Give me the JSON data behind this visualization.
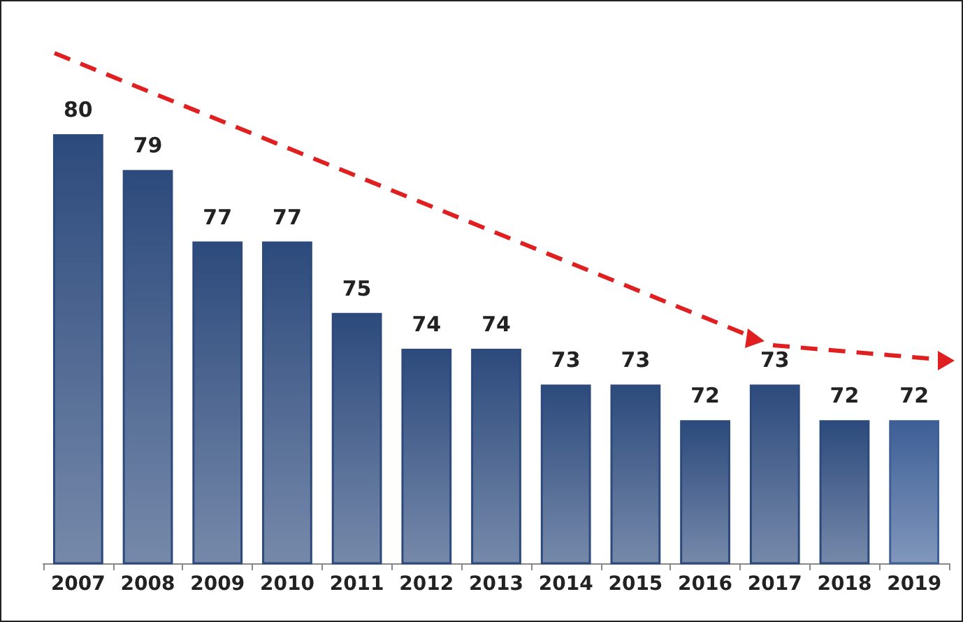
{
  "chart_data": {
    "type": "bar",
    "categories": [
      "2007",
      "2008",
      "2009",
      "2010",
      "2011",
      "2012",
      "2013",
      "2014",
      "2015",
      "2016",
      "2017",
      "2018",
      "2019"
    ],
    "values": [
      80,
      79,
      77,
      77,
      75,
      74,
      74,
      73,
      73,
      72,
      73,
      72,
      72
    ],
    "colors": [
      "#2c4a7c",
      "#2c4a7c",
      "#2c4a7c",
      "#2c4a7c",
      "#2c4a7c",
      "#2c4a7c",
      "#2c4a7c",
      "#2c4a7c",
      "#2c4a7c",
      "#2c4a7c",
      "#2c4a7c",
      "#2c4a7c",
      "#3d5f96"
    ],
    "ylim": [
      68,
      80
    ],
    "data_labels": true
  }
}
